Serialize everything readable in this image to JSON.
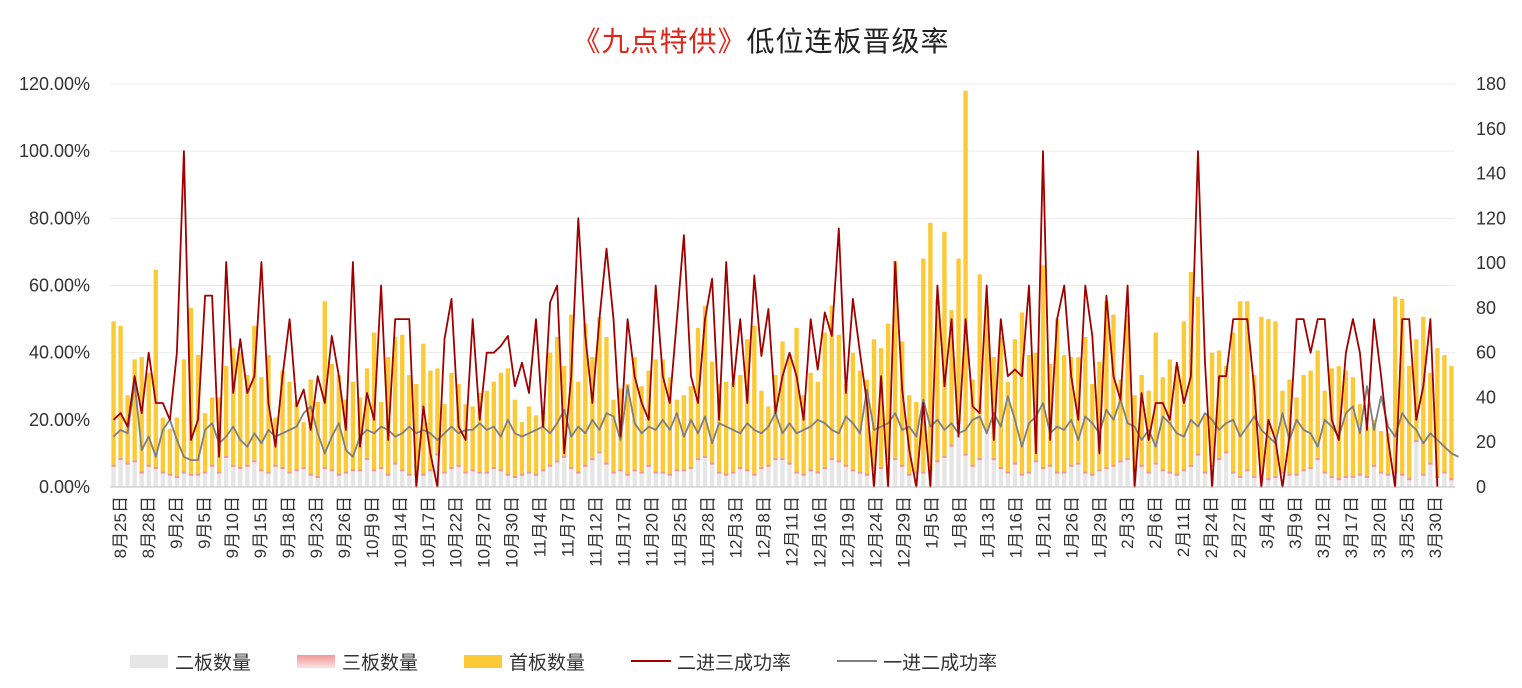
{
  "title_parts": {
    "brand": "《九点特供》",
    "rest": "低位连板晋级率"
  },
  "colors": {
    "second": "#e6e6e6",
    "third": "#f19696",
    "first": "#fcc937",
    "rate23": "#a00000",
    "rate12": "#7f7f7f",
    "grid": "#ececec"
  },
  "chart_data": {
    "type": "bar",
    "title": "《九点特供》低位连板晋级率",
    "y_left": {
      "ylim": [
        0,
        1.2
      ],
      "ticks": [
        "0.00%",
        "20.00%",
        "40.00%",
        "60.00%",
        "80.00%",
        "100.00%",
        "120.00%"
      ]
    },
    "y_right": {
      "ylim": [
        0,
        180
      ],
      "ticks": [
        "0",
        "20",
        "40",
        "60",
        "80",
        "100",
        "120",
        "140",
        "160",
        "180"
      ]
    },
    "x_tick_labels": [
      "8月25日",
      "8月28日",
      "9月2日",
      "9月5日",
      "9月10日",
      "9月15日",
      "9月18日",
      "9月23日",
      "9月26日",
      "10月9日",
      "10月14日",
      "10月17日",
      "10月22日",
      "10月27日",
      "10月30日",
      "11月4日",
      "11月7日",
      "11月12日",
      "11月17日",
      "11月20日",
      "11月25日",
      "11月28日",
      "12月3日",
      "12月8日",
      "12月11日",
      "12月16日",
      "12月19日",
      "12月24日",
      "12月29日",
      "1月5日",
      "1月8日",
      "1月13日",
      "1月16日",
      "1月21日",
      "1月26日",
      "1月29日",
      "2月3日",
      "2月6日",
      "2月11日",
      "2月24日",
      "2月27日",
      "3月4日",
      "3月9日",
      "3月12日",
      "3月17日",
      "3月20日",
      "3月25日",
      "3月30日"
    ],
    "series": [
      {
        "name": "二板数量",
        "type": "bar",
        "axis": "right",
        "values": [
          9,
          12,
          10,
          11,
          6,
          9,
          8,
          6,
          5,
          4,
          6,
          5,
          5,
          6,
          9,
          6,
          13,
          9,
          8,
          9,
          11,
          7,
          6,
          9,
          8,
          6,
          7,
          8,
          5,
          4,
          8,
          7,
          5,
          6,
          7,
          7,
          12,
          7,
          8,
          5,
          10,
          7,
          5,
          5,
          5,
          7,
          14,
          6,
          8,
          9,
          6,
          7,
          6,
          6,
          8,
          7,
          5,
          4,
          5,
          6,
          5,
          7,
          9,
          11,
          13,
          8,
          6,
          9,
          12,
          15,
          10,
          6,
          7,
          5,
          7,
          6,
          9,
          6,
          6,
          5,
          7,
          7,
          8,
          12,
          13,
          10,
          6,
          5,
          6,
          8,
          7,
          5,
          8,
          9,
          12,
          12,
          10,
          6,
          5,
          7,
          6,
          8,
          12,
          11,
          9,
          7,
          6,
          5,
          8,
          8,
          12,
          12,
          9,
          5,
          6,
          6,
          7,
          11,
          13,
          18,
          28,
          14,
          9,
          12,
          25,
          12,
          8,
          6,
          10,
          5,
          6,
          11,
          8,
          9,
          6,
          6,
          9,
          10,
          6,
          5,
          7,
          8,
          9,
          11,
          12,
          7,
          9,
          6,
          10,
          7,
          6,
          5,
          7,
          9,
          14,
          6,
          9,
          12,
          15,
          6,
          4,
          7,
          4,
          5,
          3,
          4,
          6,
          5,
          5,
          7,
          8,
          12,
          6,
          4,
          3,
          4,
          4,
          5,
          4,
          9,
          6,
          5,
          6,
          5,
          3,
          20,
          5,
          10,
          4,
          6,
          3
        ]
      },
      {
        "name": "三板数量",
        "type": "bar",
        "axis": "right",
        "values": [
          1,
          1,
          1,
          1,
          1,
          1,
          1,
          1,
          1,
          1,
          1,
          1,
          1,
          1,
          1,
          1,
          1,
          1,
          1,
          1,
          1,
          1,
          1,
          1,
          1,
          1,
          1,
          1,
          1,
          1,
          1,
          1,
          1,
          1,
          1,
          1,
          1,
          1,
          1,
          1,
          1,
          1,
          1,
          1,
          1,
          1,
          1,
          1,
          1,
          1,
          1,
          1,
          1,
          1,
          1,
          1,
          1,
          1,
          1,
          1,
          1,
          1,
          1,
          1,
          1,
          1,
          1,
          1,
          1,
          1,
          1,
          1,
          1,
          1,
          1,
          1,
          1,
          1,
          1,
          1,
          1,
          1,
          1,
          1,
          1,
          1,
          1,
          1,
          1,
          1,
          1,
          1,
          1,
          1,
          1,
          1,
          1,
          1,
          1,
          1,
          1,
          1,
          1,
          1,
          1,
          1,
          1,
          1,
          1,
          1,
          1,
          1,
          1,
          1,
          1,
          1,
          1,
          1,
          1,
          1,
          1,
          1,
          1,
          1,
          1,
          1,
          1,
          1,
          1,
          1,
          1,
          1,
          1,
          1,
          1,
          1,
          1,
          1,
          1,
          1,
          1,
          1,
          1,
          1,
          1,
          1,
          1,
          1,
          1,
          1,
          1,
          1,
          1,
          1,
          1,
          1,
          1,
          1,
          1,
          1,
          1,
          1,
          1,
          1,
          1,
          1,
          1,
          1,
          1,
          1,
          1,
          1,
          1,
          1,
          1,
          1,
          1,
          1,
          1,
          1,
          1,
          1,
          1,
          1,
          1,
          1,
          1,
          1,
          1,
          1,
          1
        ]
      },
      {
        "name": "首板数量",
        "type": "bar",
        "axis": "right",
        "values": [
          64,
          59,
          30,
          45,
          51,
          41,
          88,
          24,
          20,
          26,
          50,
          74,
          53,
          26,
          30,
          33,
          40,
          52,
          51,
          40,
          60,
          41,
          52,
          21,
          43,
          40,
          30,
          20,
          42,
          33,
          74,
          47,
          44,
          32,
          39,
          32,
          40,
          61,
          29,
          52,
          56,
          60,
          44,
          40,
          58,
          44,
          38,
          30,
          42,
          36,
          30,
          28,
          35,
          36,
          38,
          43,
          47,
          34,
          23,
          29,
          26,
          26,
          50,
          55,
          40,
          68,
          40,
          63,
          45,
          60,
          56,
          32,
          36,
          40,
          50,
          38,
          42,
          50,
          50,
          43,
          31,
          33,
          36,
          58,
          67,
          45,
          39,
          41,
          40,
          41,
          58,
          66,
          34,
          26,
          37,
          52,
          48,
          64,
          35,
          43,
          40,
          60,
          68,
          56,
          36,
          52,
          45,
          42,
          57,
          53,
          60,
          88,
          55,
          35,
          31,
          95,
          110,
          72,
          100,
          60,
          73,
          162,
          38,
          82,
          55,
          45,
          58,
          40,
          55,
          72,
          52,
          48,
          90,
          45,
          68,
          52,
          48,
          47,
          60,
          40,
          48,
          74,
          67,
          36,
          64,
          33,
          40,
          36,
          58,
          41,
          50,
          48,
          66,
          86,
          70,
          25,
          50,
          48,
          38,
          62,
          78,
          75,
          45,
          70,
          71,
          69,
          36,
          42,
          34,
          42,
          43,
          48,
          36,
          48,
          50,
          47,
          44,
          31,
          22,
          20,
          18,
          18,
          78,
          78,
          50,
          45,
          70,
          40,
          57,
          52,
          50
        ]
      },
      {
        "name": "二进三成功率",
        "type": "line",
        "axis": "left",
        "values": [
          0.2,
          0.22,
          0.18,
          0.33,
          0.22,
          0.4,
          0.25,
          0.25,
          0.2,
          0.4,
          1.0,
          0.14,
          0.2,
          0.57,
          0.57,
          0.09,
          0.67,
          0.28,
          0.44,
          0.28,
          0.33,
          0.67,
          0.25,
          0.12,
          0.33,
          0.5,
          0.24,
          0.29,
          0.17,
          0.33,
          0.25,
          0.45,
          0.33,
          0.17,
          0.67,
          0.12,
          0.28,
          0.2,
          0.6,
          0.14,
          0.5,
          0.5,
          0.5,
          0.0,
          0.24,
          0.1,
          0.0,
          0.44,
          0.56,
          0.18,
          0.14,
          0.5,
          0.2,
          0.4,
          0.4,
          0.42,
          0.45,
          0.3,
          0.37,
          0.28,
          0.5,
          0.18,
          0.55,
          0.6,
          0.1,
          0.33,
          0.8,
          0.45,
          0.25,
          0.5,
          0.71,
          0.5,
          0.15,
          0.5,
          0.33,
          0.25,
          0.2,
          0.6,
          0.33,
          0.25,
          0.5,
          0.75,
          0.33,
          0.25,
          0.5,
          0.62,
          0.2,
          0.67,
          0.3,
          0.5,
          0.25,
          0.63,
          0.39,
          0.53,
          0.22,
          0.33,
          0.4,
          0.33,
          0.2,
          0.5,
          0.35,
          0.52,
          0.45,
          0.77,
          0.28,
          0.56,
          0.4,
          0.25,
          0.0,
          0.33,
          0.0,
          0.67,
          0.29,
          0.11,
          0.0,
          0.25,
          0.0,
          0.6,
          0.3,
          0.5,
          0.15,
          0.5,
          0.24,
          0.22,
          0.6,
          0.14,
          0.5,
          0.33,
          0.35,
          0.33,
          0.6,
          0.1,
          1.0,
          0.14,
          0.5,
          0.6,
          0.33,
          0.2,
          0.6,
          0.45,
          0.1,
          0.57,
          0.33,
          0.26,
          0.6,
          0.0,
          0.28,
          0.14,
          0.25,
          0.25,
          0.2,
          0.37,
          0.25,
          0.33,
          1.0,
          0.37,
          0.0,
          0.33,
          0.33,
          0.5,
          0.5,
          0.5,
          0.29,
          0.0,
          0.2,
          0.14,
          0.0,
          0.15,
          0.5,
          0.5,
          0.4,
          0.5,
          0.5,
          0.2,
          0.14,
          0.4,
          0.5,
          0.4,
          0.17,
          0.5,
          0.33,
          0.14,
          0.0,
          0.5,
          0.5,
          0.2,
          0.3,
          0.5,
          0.0
        ]
      },
      {
        "name": "一进二成功率",
        "type": "line",
        "axis": "left",
        "values": [
          0.15,
          0.17,
          0.16,
          0.31,
          0.11,
          0.15,
          0.09,
          0.17,
          0.2,
          0.14,
          0.09,
          0.08,
          0.08,
          0.17,
          0.19,
          0.13,
          0.15,
          0.18,
          0.14,
          0.12,
          0.16,
          0.13,
          0.17,
          0.15,
          0.16,
          0.17,
          0.18,
          0.22,
          0.24,
          0.16,
          0.1,
          0.15,
          0.19,
          0.11,
          0.09,
          0.15,
          0.17,
          0.16,
          0.18,
          0.17,
          0.15,
          0.16,
          0.18,
          0.16,
          0.17,
          0.16,
          0.14,
          0.16,
          0.18,
          0.16,
          0.17,
          0.17,
          0.19,
          0.17,
          0.18,
          0.15,
          0.2,
          0.16,
          0.15,
          0.16,
          0.17,
          0.18,
          0.16,
          0.19,
          0.23,
          0.15,
          0.18,
          0.16,
          0.2,
          0.17,
          0.22,
          0.21,
          0.14,
          0.3,
          0.19,
          0.16,
          0.18,
          0.17,
          0.2,
          0.17,
          0.22,
          0.15,
          0.2,
          0.16,
          0.21,
          0.13,
          0.19,
          0.18,
          0.17,
          0.16,
          0.19,
          0.17,
          0.16,
          0.18,
          0.22,
          0.16,
          0.19,
          0.16,
          0.17,
          0.18,
          0.2,
          0.19,
          0.17,
          0.16,
          0.21,
          0.19,
          0.16,
          0.29,
          0.17,
          0.18,
          0.19,
          0.22,
          0.17,
          0.18,
          0.15,
          0.26,
          0.18,
          0.2,
          0.17,
          0.19,
          0.16,
          0.17,
          0.2,
          0.21,
          0.16,
          0.22,
          0.18,
          0.27,
          0.2,
          0.12,
          0.19,
          0.21,
          0.25,
          0.16,
          0.18,
          0.17,
          0.2,
          0.14,
          0.21,
          0.19,
          0.16,
          0.23,
          0.2,
          0.26,
          0.19,
          0.18,
          0.14,
          0.17,
          0.12,
          0.21,
          0.19,
          0.16,
          0.15,
          0.2,
          0.18,
          0.22,
          0.2,
          0.17,
          0.19,
          0.2,
          0.15,
          0.18,
          0.21,
          0.17,
          0.15,
          0.13,
          0.22,
          0.14,
          0.2,
          0.17,
          0.16,
          0.12,
          0.2,
          0.18,
          0.15,
          0.22,
          0.24,
          0.16,
          0.3,
          0.17,
          0.27,
          0.18,
          0.15,
          0.22,
          0.19,
          0.17,
          0.13,
          0.16,
          0.14,
          0.12,
          0.1,
          0.09
        ]
      }
    ],
    "legend": {
      "placement": "bottom"
    },
    "grid": true
  },
  "legend_items": [
    "二板数量",
    "三板数量",
    "首板数量",
    "二进三成功率",
    "一进二成功率"
  ]
}
